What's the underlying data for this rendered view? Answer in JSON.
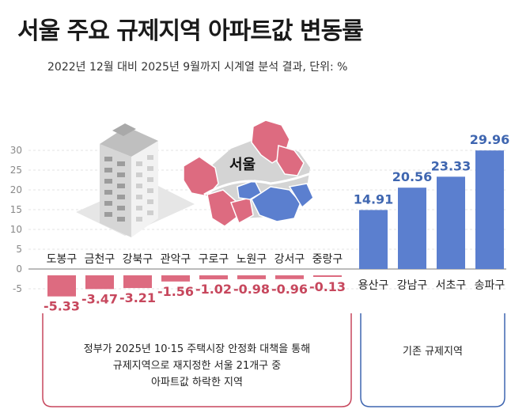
{
  "title": "서울 주요 규제지역 아파트값 변동률",
  "subtitle": "2022년 12월 대비 2025년 9월까지 시계열 분석 결과, 단위: %",
  "map_label": "서울",
  "notes": {
    "new_regions_lines": [
      "정부가 2025년 10·15 주택시장 안정화 대책을 통해",
      "규제지역으로 재지정한 서울 21개구 중",
      "아파트값 하락한 지역"
    ],
    "existing_regions": "기존 규제지역"
  },
  "colors": {
    "positive": "#5b7fcf",
    "negative": "#dd6b80",
    "positive_label": "#3f66b0",
    "negative_label": "#c7475d"
  },
  "chart_data": {
    "type": "bar",
    "title": "서울 주요 규제지역 아파트값 변동률",
    "subtitle": "2022년 12월 대비 2025년 9월까지 시계열 분석 결과, 단위: %",
    "categories": [
      "도봉구",
      "금천구",
      "강북구",
      "관악구",
      "구로구",
      "노원구",
      "강서구",
      "중랑구",
      "용산구",
      "강남구",
      "서초구",
      "송파구"
    ],
    "values": [
      -5.33,
      -3.47,
      -3.21,
      -1.56,
      -1.02,
      -0.98,
      -0.96,
      -0.13,
      14.91,
      20.56,
      23.33,
      29.96
    ],
    "value_labels": [
      "-5.33",
      "-3.47",
      "-3.21",
      "-1.56",
      "-1.02",
      "-0.98",
      "-0.96",
      "-0.13",
      "14.91",
      "20.56",
      "23.33",
      "29.96"
    ],
    "yticks": [
      30,
      25,
      20,
      15,
      10,
      5,
      0,
      -5
    ],
    "ylim": [
      -7,
      30
    ],
    "grid": true,
    "xlabel": "",
    "ylabel": ""
  }
}
